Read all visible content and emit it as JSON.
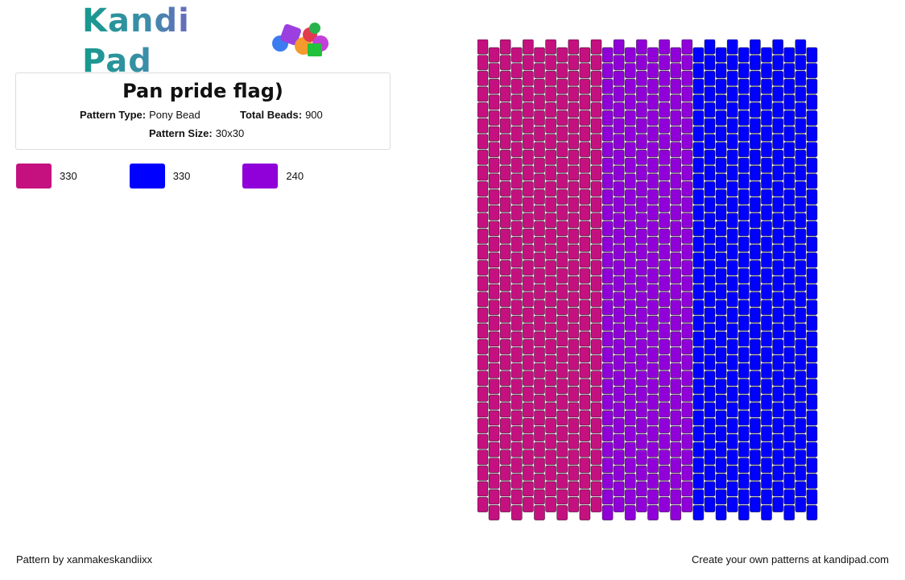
{
  "logo": {
    "text": "Kandi Pad",
    "icon": "bead-pile-icon"
  },
  "pattern_info": {
    "title": "Pan pride flag)",
    "type_label": "Pattern Type:",
    "type_value": "Pony Bead",
    "beads_label": "Total Beads:",
    "beads_value": "900",
    "size_label": "Pattern Size:",
    "size_value": "30x30"
  },
  "legend": [
    {
      "color": "#c4117f",
      "count": "330"
    },
    {
      "color": "#0000ff",
      "count": "330"
    },
    {
      "color": "#9000d8",
      "count": "240"
    }
  ],
  "pattern": {
    "columns": 30,
    "rows": 30,
    "stripes": [
      {
        "color": "#c4117f",
        "columns": 11
      },
      {
        "color": "#9000d8",
        "columns": 8
      },
      {
        "color": "#0000ff",
        "columns": 11
      }
    ]
  },
  "footer": {
    "left": "Pattern by xanmakeskandiixx",
    "right": "Create your own patterns at kandipad.com"
  }
}
